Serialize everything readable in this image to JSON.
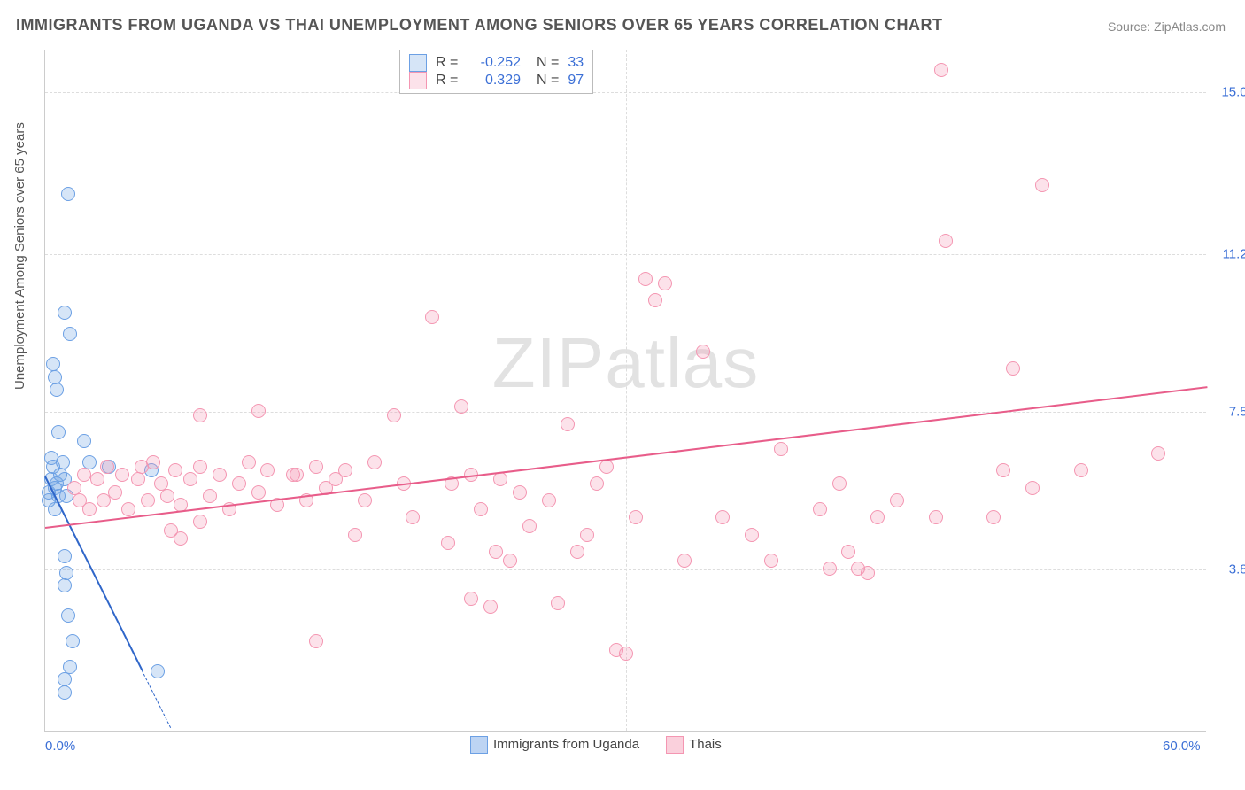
{
  "title": "IMMIGRANTS FROM UGANDA VS THAI UNEMPLOYMENT AMONG SENIORS OVER 65 YEARS CORRELATION CHART",
  "source": "Source: ZipAtlas.com",
  "watermark_a": "ZIP",
  "watermark_b": "atlas",
  "y_axis_title": "Unemployment Among Seniors over 65 years",
  "chart": {
    "type": "scatter",
    "xlim": [
      0,
      60
    ],
    "ylim": [
      0,
      16
    ],
    "x_ticks": [
      {
        "v": 0,
        "label": "0.0%"
      },
      {
        "v": 60,
        "label": "60.0%"
      }
    ],
    "y_ticks": [
      {
        "v": 3.8,
        "label": "3.8%"
      },
      {
        "v": 7.5,
        "label": "7.5%"
      },
      {
        "v": 11.2,
        "label": "11.2%"
      },
      {
        "v": 15.0,
        "label": "15.0%"
      }
    ],
    "grid_v_extra": [
      30
    ],
    "grid_color": "#dddddd",
    "background_color": "#ffffff",
    "axis_color": "#cccccc",
    "tick_label_color": "#3b6fd6",
    "marker_radius": 8,
    "series": [
      {
        "id": "uganda",
        "label": "Immigrants from Uganda",
        "R": "-0.252",
        "N": "33",
        "color_fill": "rgba(108,160,228,0.28)",
        "color_stroke": "#6ca0e4",
        "trend_color": "#2f66c9",
        "trend": {
          "x1": 0,
          "y1": 6.0,
          "x2": 6.5,
          "y2": 0.1,
          "dash_from_x": 5.0
        },
        "points": [
          [
            0.2,
            5.6
          ],
          [
            0.2,
            5.4
          ],
          [
            0.3,
            5.9
          ],
          [
            0.4,
            6.2
          ],
          [
            0.3,
            6.4
          ],
          [
            0.5,
            5.7
          ],
          [
            0.5,
            5.2
          ],
          [
            0.6,
            5.8
          ],
          [
            0.7,
            5.5
          ],
          [
            0.8,
            6.0
          ],
          [
            0.9,
            6.3
          ],
          [
            1.0,
            5.9
          ],
          [
            1.1,
            5.5
          ],
          [
            2.0,
            6.8
          ],
          [
            2.3,
            6.3
          ],
          [
            0.4,
            8.6
          ],
          [
            0.5,
            8.3
          ],
          [
            0.6,
            8.0
          ],
          [
            0.7,
            7.0
          ],
          [
            1.0,
            9.8
          ],
          [
            1.3,
            9.3
          ],
          [
            1.2,
            12.6
          ],
          [
            1.0,
            4.1
          ],
          [
            1.1,
            3.7
          ],
          [
            1.0,
            3.4
          ],
          [
            1.2,
            2.7
          ],
          [
            1.4,
            2.1
          ],
          [
            1.3,
            1.5
          ],
          [
            1.0,
            1.2
          ],
          [
            1.0,
            0.9
          ],
          [
            5.8,
            1.4
          ],
          [
            5.5,
            6.1
          ],
          [
            3.3,
            6.2
          ]
        ]
      },
      {
        "id": "thais",
        "label": "Thais",
        "R": "0.329",
        "N": "97",
        "color_fill": "rgba(244,150,178,0.28)",
        "color_stroke": "#f496b2",
        "trend_color": "#e85d8a",
        "trend": {
          "x1": 0,
          "y1": 4.8,
          "x2": 60,
          "y2": 8.1
        },
        "points": [
          [
            1.5,
            5.7
          ],
          [
            1.8,
            5.4
          ],
          [
            2.0,
            6.0
          ],
          [
            2.3,
            5.2
          ],
          [
            2.7,
            5.9
          ],
          [
            3.0,
            5.4
          ],
          [
            3.2,
            6.2
          ],
          [
            3.6,
            5.6
          ],
          [
            4.0,
            6.0
          ],
          [
            4.3,
            5.2
          ],
          [
            4.8,
            5.9
          ],
          [
            5.0,
            6.2
          ],
          [
            5.3,
            5.4
          ],
          [
            5.6,
            6.3
          ],
          [
            6.0,
            5.8
          ],
          [
            6.3,
            5.5
          ],
          [
            6.7,
            6.1
          ],
          [
            7.0,
            5.3
          ],
          [
            7.5,
            5.9
          ],
          [
            8.0,
            6.2
          ],
          [
            8.5,
            5.5
          ],
          [
            9.0,
            6.0
          ],
          [
            9.5,
            5.2
          ],
          [
            10.0,
            5.8
          ],
          [
            10.5,
            6.3
          ],
          [
            11.0,
            5.6
          ],
          [
            11.5,
            6.1
          ],
          [
            12.0,
            5.3
          ],
          [
            12.8,
            6.0
          ],
          [
            8.0,
            7.4
          ],
          [
            11.0,
            7.5
          ],
          [
            6.5,
            4.7
          ],
          [
            7.0,
            4.5
          ],
          [
            8.0,
            4.9
          ],
          [
            13.0,
            6.0
          ],
          [
            13.5,
            5.4
          ],
          [
            14.0,
            6.2
          ],
          [
            14.5,
            5.7
          ],
          [
            15.0,
            5.9
          ],
          [
            15.5,
            6.1
          ],
          [
            16.5,
            5.4
          ],
          [
            17.0,
            6.3
          ],
          [
            18.0,
            7.4
          ],
          [
            18.5,
            5.8
          ],
          [
            20.0,
            9.7
          ],
          [
            21.0,
            5.8
          ],
          [
            21.5,
            7.6
          ],
          [
            22.0,
            6.0
          ],
          [
            22.5,
            5.2
          ],
          [
            22.0,
            3.1
          ],
          [
            23.0,
            2.9
          ],
          [
            23.3,
            4.2
          ],
          [
            24.5,
            5.6
          ],
          [
            25.0,
            4.8
          ],
          [
            14.0,
            2.1
          ],
          [
            26.0,
            5.4
          ],
          [
            27.0,
            7.2
          ],
          [
            28.0,
            4.6
          ],
          [
            28.5,
            5.8
          ],
          [
            29.0,
            6.2
          ],
          [
            29.5,
            1.9
          ],
          [
            30.0,
            1.8
          ],
          [
            30.5,
            5.0
          ],
          [
            31.0,
            10.6
          ],
          [
            32.0,
            10.5
          ],
          [
            31.5,
            10.1
          ],
          [
            33.0,
            4.0
          ],
          [
            34.0,
            8.9
          ],
          [
            38.0,
            6.6
          ],
          [
            37.5,
            4.0
          ],
          [
            36.5,
            4.6
          ],
          [
            40.0,
            5.2
          ],
          [
            40.5,
            3.8
          ],
          [
            41.0,
            5.8
          ],
          [
            41.5,
            4.2
          ],
          [
            42.0,
            3.8
          ],
          [
            42.5,
            3.7
          ],
          [
            44.0,
            5.4
          ],
          [
            46.0,
            5.0
          ],
          [
            46.5,
            11.5
          ],
          [
            46.3,
            15.5
          ],
          [
            50.0,
            8.5
          ],
          [
            49.5,
            6.1
          ],
          [
            49.0,
            5.0
          ],
          [
            51.0,
            5.7
          ],
          [
            51.5,
            12.8
          ],
          [
            53.5,
            6.1
          ],
          [
            57.5,
            6.5
          ],
          [
            20.8,
            4.4
          ],
          [
            26.5,
            3.0
          ],
          [
            16.0,
            4.6
          ],
          [
            35.0,
            5.0
          ],
          [
            43.0,
            5.0
          ],
          [
            27.5,
            4.2
          ],
          [
            19.0,
            5.0
          ],
          [
            23.5,
            5.9
          ],
          [
            24.0,
            4.0
          ]
        ]
      }
    ]
  },
  "legend_bottom": [
    {
      "label": "Immigrants from Uganda",
      "fill": "rgba(108,160,228,0.45)",
      "stroke": "#6ca0e4"
    },
    {
      "label": "Thais",
      "fill": "rgba(244,150,178,0.45)",
      "stroke": "#f496b2"
    }
  ]
}
